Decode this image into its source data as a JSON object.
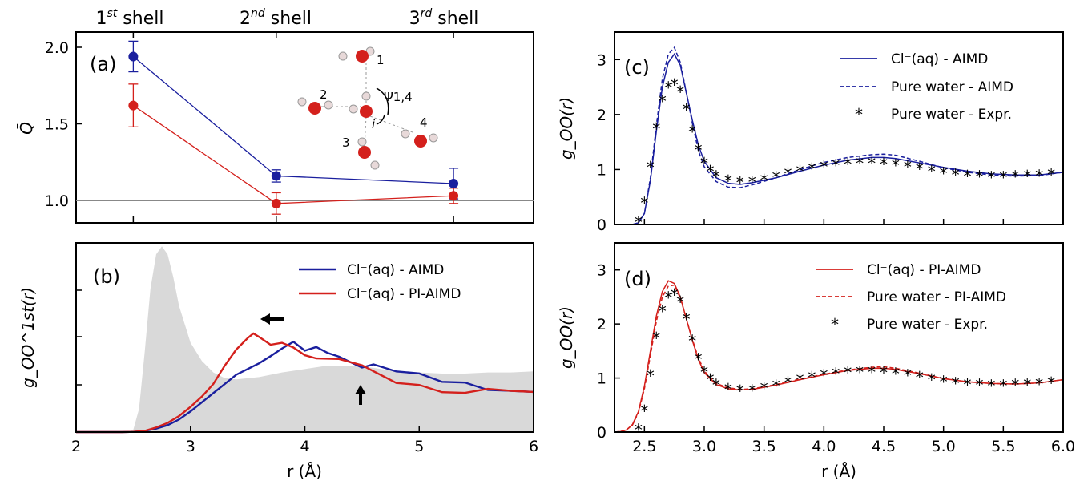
{
  "headers": [
    "1st shell",
    "2nd shell",
    "3rd shell"
  ],
  "colors": {
    "aimd": "#1a1f9e",
    "pi": "#d4201c",
    "gray": "#d9d9d9",
    "expr": "#000000"
  },
  "chart_data": [
    {
      "id": "a",
      "type": "scatter",
      "panel_label": "(a)",
      "ylabel": "Q̄",
      "ylim": [
        0.85,
        2.1
      ],
      "yticks": [
        "1.0",
        "1.5",
        "2.0"
      ],
      "categories": [
        "1st shell",
        "2nd shell",
        "3rd shell"
      ],
      "x": [
        2.5,
        3.75,
        5.3
      ],
      "series": [
        {
          "key": "aimd",
          "values": [
            1.94,
            1.16,
            1.11
          ],
          "errors": [
            0.1,
            0.04,
            0.1
          ]
        },
        {
          "key": "pi",
          "values": [
            1.62,
            0.98,
            1.03
          ],
          "errors": [
            0.14,
            0.07,
            0.05
          ]
        }
      ],
      "reference_line": 1.0,
      "inset_labels": [
        "1",
        "2",
        "3",
        "4",
        "i",
        "Ψ1,4"
      ]
    },
    {
      "id": "b",
      "type": "line",
      "panel_label": "(b)",
      "xlabel": "r (Å)",
      "xlim": [
        2,
        6
      ],
      "xticks": [
        "2",
        "3",
        "4",
        "5",
        "6"
      ],
      "ylabel": "g_OO^1st(r)",
      "legend": [
        "Cl⁻(aq) - AIMD",
        "Cl⁻(aq) - PI-AIMD"
      ],
      "series": [
        {
          "key": "aimd",
          "x": [
            2.0,
            2.4,
            2.5,
            2.6,
            2.7,
            2.8,
            2.9,
            3.0,
            3.1,
            3.2,
            3.3,
            3.4,
            3.5,
            3.6,
            3.7,
            3.8,
            3.9,
            4.0,
            4.1,
            4.2,
            4.3,
            4.4,
            4.5,
            4.6,
            4.8,
            5.0,
            5.2,
            5.4,
            5.6,
            5.8,
            6.0
          ],
          "y": [
            0,
            0,
            0.002,
            0.01,
            0.03,
            0.06,
            0.11,
            0.18,
            0.26,
            0.34,
            0.42,
            0.5,
            0.55,
            0.6,
            0.68,
            0.72,
            0.77,
            0.72,
            0.76,
            0.68,
            0.64,
            0.62,
            0.58,
            0.58,
            0.54,
            0.5,
            0.45,
            0.42,
            0.38,
            0.36,
            0.35
          ]
        },
        {
          "key": "pi",
          "x": [
            2.0,
            2.4,
            2.5,
            2.6,
            2.7,
            2.8,
            2.9,
            3.0,
            3.1,
            3.2,
            3.3,
            3.4,
            3.5,
            3.55,
            3.6,
            3.7,
            3.8,
            3.9,
            4.0,
            4.1,
            4.2,
            4.3,
            4.4,
            4.5,
            4.6,
            4.8,
            5.0,
            5.2,
            5.4,
            5.6,
            5.8,
            6.0
          ],
          "y": [
            0,
            0,
            0.002,
            0.01,
            0.04,
            0.08,
            0.14,
            0.22,
            0.31,
            0.42,
            0.58,
            0.72,
            0.82,
            0.86,
            0.83,
            0.78,
            0.77,
            0.72,
            0.68,
            0.66,
            0.63,
            0.62,
            0.62,
            0.6,
            0.52,
            0.44,
            0.4,
            0.36,
            0.33,
            0.39,
            0.36,
            0.35
          ]
        },
        {
          "key": "gray",
          "x": [
            2.0,
            2.45,
            2.5,
            2.55,
            2.6,
            2.65,
            2.7,
            2.75,
            2.8,
            2.85,
            2.9,
            3.0,
            3.1,
            3.2,
            3.3,
            3.4,
            3.6,
            3.8,
            4.0,
            4.2,
            4.4,
            4.6,
            4.8,
            5.0,
            5.2,
            5.4,
            5.6,
            5.8,
            6.0
          ],
          "y": [
            0,
            0,
            0.02,
            0.2,
            0.7,
            1.25,
            1.55,
            1.62,
            1.55,
            1.35,
            1.1,
            0.78,
            0.62,
            0.52,
            0.47,
            0.46,
            0.48,
            0.52,
            0.55,
            0.58,
            0.58,
            0.56,
            0.53,
            0.52,
            0.51,
            0.51,
            0.52,
            0.52,
            0.53
          ]
        }
      ]
    },
    {
      "id": "c",
      "type": "line",
      "panel_label": "(c)",
      "ylabel": "g_OO(r)",
      "xlim": [
        2.25,
        6.0
      ],
      "ylim": [
        0,
        3.5
      ],
      "yticks": [
        "0",
        "1",
        "2",
        "3"
      ],
      "legend": [
        "Cl⁻(aq) - AIMD",
        "Pure water - AIMD",
        "Pure water - Expr."
      ],
      "series": [
        {
          "key": "aimd",
          "style": "solid",
          "x": [
            2.3,
            2.4,
            2.45,
            2.5,
            2.55,
            2.6,
            2.65,
            2.7,
            2.75,
            2.8,
            2.85,
            2.9,
            2.95,
            3.0,
            3.1,
            3.2,
            3.3,
            3.4,
            3.6,
            3.8,
            4.0,
            4.2,
            4.4,
            4.5,
            4.6,
            4.8,
            5.0,
            5.2,
            5.4,
            5.6,
            5.8,
            6.0
          ],
          "y": [
            0,
            0,
            0.03,
            0.2,
            0.8,
            1.7,
            2.5,
            2.95,
            3.1,
            2.9,
            2.4,
            1.9,
            1.45,
            1.15,
            0.85,
            0.75,
            0.73,
            0.76,
            0.85,
            0.97,
            1.08,
            1.17,
            1.22,
            1.22,
            1.2,
            1.12,
            1.04,
            0.97,
            0.92,
            0.9,
            0.9,
            0.95
          ]
        },
        {
          "key": "aimd",
          "style": "dashed",
          "x": [
            2.3,
            2.4,
            2.45,
            2.5,
            2.55,
            2.6,
            2.65,
            2.7,
            2.75,
            2.8,
            2.85,
            2.9,
            2.95,
            3.0,
            3.1,
            3.2,
            3.3,
            3.4,
            3.6,
            3.8,
            4.0,
            4.2,
            4.4,
            4.5,
            4.6,
            4.8,
            5.0,
            5.2,
            5.4,
            5.6,
            5.8,
            6.0
          ],
          "y": [
            0,
            0,
            0.03,
            0.2,
            0.85,
            1.8,
            2.65,
            3.1,
            3.22,
            2.95,
            2.4,
            1.85,
            1.35,
            1.05,
            0.78,
            0.68,
            0.67,
            0.72,
            0.85,
            1.0,
            1.13,
            1.22,
            1.27,
            1.28,
            1.26,
            1.15,
            1.03,
            0.95,
            0.9,
            0.88,
            0.89,
            0.95
          ]
        },
        {
          "key": "expr",
          "style": "star",
          "x": [
            2.45,
            2.5,
            2.55,
            2.6,
            2.65,
            2.7,
            2.75,
            2.8,
            2.85,
            2.9,
            2.95,
            3.0,
            3.05,
            3.1,
            3.2,
            3.3,
            3.4,
            3.5,
            3.6,
            3.7,
            3.8,
            3.9,
            4.0,
            4.1,
            4.2,
            4.3,
            4.4,
            4.5,
            4.6,
            4.7,
            4.8,
            4.9,
            5.0,
            5.1,
            5.2,
            5.3,
            5.4,
            5.5,
            5.6,
            5.7,
            5.8,
            5.9
          ],
          "y": [
            0.05,
            0.4,
            1.05,
            1.75,
            2.25,
            2.5,
            2.55,
            2.42,
            2.1,
            1.7,
            1.36,
            1.12,
            0.98,
            0.88,
            0.8,
            0.77,
            0.78,
            0.82,
            0.87,
            0.93,
            0.98,
            1.02,
            1.06,
            1.09,
            1.11,
            1.12,
            1.12,
            1.11,
            1.09,
            1.06,
            1.02,
            0.98,
            0.94,
            0.91,
            0.89,
            0.88,
            0.87,
            0.87,
            0.88,
            0.89,
            0.9,
            0.92
          ]
        }
      ]
    },
    {
      "id": "d",
      "type": "line",
      "panel_label": "(d)",
      "xlabel": "r (Å)",
      "ylabel": "g_OO(r)",
      "xlim": [
        2.25,
        6.0
      ],
      "ylim": [
        0,
        3.5
      ],
      "xticks": [
        "2.5",
        "3.0",
        "3.5",
        "4.0",
        "4.5",
        "5.0",
        "5.5",
        "6.0"
      ],
      "yticks": [
        "0",
        "1",
        "2",
        "3"
      ],
      "legend": [
        "Cl⁻(aq) - PI-AIMD",
        "Pure water - PI-AIMD",
        "Pure water - Expr."
      ],
      "series": [
        {
          "key": "pi",
          "style": "solid",
          "x": [
            2.25,
            2.3,
            2.35,
            2.4,
            2.45,
            2.5,
            2.55,
            2.6,
            2.65,
            2.7,
            2.75,
            2.8,
            2.85,
            2.9,
            2.95,
            3.0,
            3.1,
            3.2,
            3.3,
            3.4,
            3.6,
            3.8,
            4.0,
            4.2,
            4.4,
            4.5,
            4.6,
            4.8,
            5.0,
            5.2,
            5.4,
            5.6,
            5.8,
            6.0
          ],
          "y": [
            0,
            0.01,
            0.04,
            0.14,
            0.38,
            0.85,
            1.5,
            2.15,
            2.6,
            2.8,
            2.75,
            2.5,
            2.1,
            1.7,
            1.35,
            1.1,
            0.88,
            0.8,
            0.78,
            0.79,
            0.87,
            0.97,
            1.06,
            1.14,
            1.18,
            1.18,
            1.16,
            1.08,
            0.99,
            0.93,
            0.9,
            0.89,
            0.91,
            0.97
          ]
        },
        {
          "key": "pi",
          "style": "dashed",
          "x": [
            2.25,
            2.3,
            2.35,
            2.4,
            2.45,
            2.5,
            2.55,
            2.6,
            2.65,
            2.7,
            2.75,
            2.8,
            2.85,
            2.9,
            2.95,
            3.0,
            3.1,
            3.2,
            3.3,
            3.4,
            3.6,
            3.8,
            4.0,
            4.2,
            4.4,
            4.5,
            4.6,
            4.8,
            5.0,
            5.2,
            5.4,
            5.6,
            5.8,
            6.0
          ],
          "y": [
            0,
            0.01,
            0.04,
            0.13,
            0.36,
            0.8,
            1.42,
            2.05,
            2.5,
            2.7,
            2.72,
            2.48,
            2.1,
            1.72,
            1.38,
            1.13,
            0.9,
            0.82,
            0.79,
            0.8,
            0.88,
            0.98,
            1.07,
            1.15,
            1.2,
            1.21,
            1.18,
            1.09,
            0.99,
            0.93,
            0.9,
            0.89,
            0.91,
            0.97
          ]
        },
        {
          "key": "expr",
          "style": "star",
          "x": [
            2.45,
            2.5,
            2.55,
            2.6,
            2.65,
            2.7,
            2.75,
            2.8,
            2.85,
            2.9,
            2.95,
            3.0,
            3.05,
            3.1,
            3.2,
            3.3,
            3.4,
            3.5,
            3.6,
            3.7,
            3.8,
            3.9,
            4.0,
            4.1,
            4.2,
            4.3,
            4.4,
            4.5,
            4.6,
            4.7,
            4.8,
            4.9,
            5.0,
            5.1,
            5.2,
            5.3,
            5.4,
            5.5,
            5.6,
            5.7,
            5.8,
            5.9
          ],
          "y": [
            0.05,
            0.4,
            1.05,
            1.75,
            2.25,
            2.5,
            2.55,
            2.42,
            2.1,
            1.7,
            1.36,
            1.12,
            0.98,
            0.88,
            0.8,
            0.77,
            0.78,
            0.82,
            0.87,
            0.93,
            0.98,
            1.02,
            1.06,
            1.09,
            1.11,
            1.12,
            1.12,
            1.11,
            1.09,
            1.06,
            1.02,
            0.98,
            0.94,
            0.91,
            0.89,
            0.88,
            0.87,
            0.87,
            0.88,
            0.89,
            0.9,
            0.92
          ]
        }
      ]
    }
  ]
}
